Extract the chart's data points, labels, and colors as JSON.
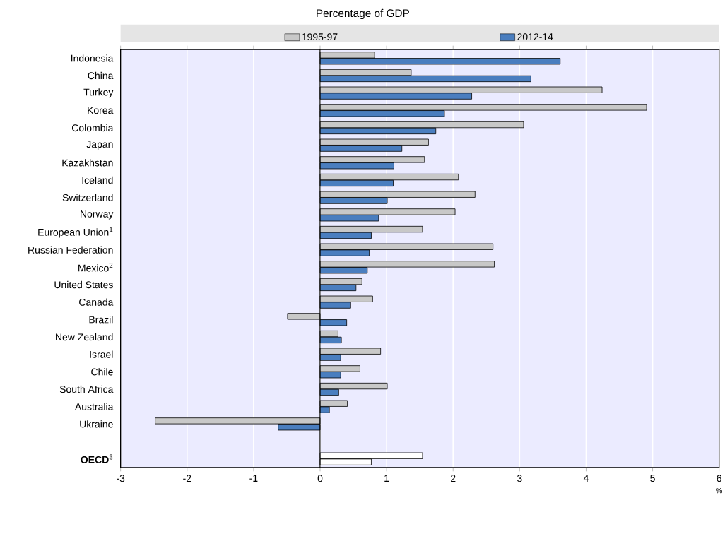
{
  "chart_data": {
    "type": "bar",
    "orientation": "horizontal",
    "subtitle": "Percentage of GDP",
    "xlabel": "%",
    "categories": [
      "Indonesia",
      "China",
      "Turkey",
      "Korea",
      "Colombia",
      "Japan",
      "Kazakhstan",
      "Iceland",
      "Switzerland",
      "Norway",
      "European Union$^{1}$",
      "Russian Federation",
      "Mexico$^{2}$",
      "United States",
      "Canada",
      "Brazil",
      "New Zealand",
      "Israel",
      "Chile",
      "South Africa",
      "Australia",
      "Ukraine",
      null,
      "**OECD**$^{3}$"
    ],
    "series": [
      {
        "name": "1995-97",
        "color": "#c8c8c8",
        "colors": [
          "#c8c8c8",
          "#c8c8c8",
          "#c8c8c8",
          "#c8c8c8",
          "#c8c8c8",
          "#c8c8c8",
          "#c8c8c8",
          "#c8c8c8",
          "#c8c8c8",
          "#c8c8c8",
          "#c8c8c8",
          "#c8c8c8",
          "#c8c8c8",
          "#c8c8c8",
          "#c8c8c8",
          "#c8c8c8",
          "#c8c8c8",
          "#c8c8c8",
          "#c8c8c8",
          "#c8c8c8",
          "#c8c8c8",
          "#c8c8c8",
          "#c8c8c8",
          "#ffffff"
        ],
        "values": [
          0.82,
          1.37,
          4.24,
          4.91,
          3.06,
          1.63,
          1.57,
          2.08,
          2.33,
          2.03,
          1.54,
          2.6,
          2.62,
          0.63,
          0.79,
          -0.49,
          0.27,
          0.91,
          0.6,
          1.01,
          0.41,
          -2.48,
          null,
          1.54
        ]
      },
      {
        "name": "2012-14",
        "color": "#4a7ebf",
        "colors": [
          "#4a7ebf",
          "#4a7ebf",
          "#4a7ebf",
          "#4a7ebf",
          "#4a7ebf",
          "#4a7ebf",
          "#4a7ebf",
          "#4a7ebf",
          "#4a7ebf",
          "#4a7ebf",
          "#4a7ebf",
          "#4a7ebf",
          "#4a7ebf",
          "#4a7ebf",
          "#4a7ebf",
          "#4a7ebf",
          "#4a7ebf",
          "#4a7ebf",
          "#4a7ebf",
          "#4a7ebf",
          "#4a7ebf",
          "#4a7ebf",
          "#4a7ebf",
          "#ffffff"
        ],
        "values": [
          3.61,
          3.17,
          2.28,
          1.87,
          1.74,
          1.23,
          1.11,
          1.1,
          1.01,
          0.88,
          0.77,
          0.74,
          0.71,
          0.54,
          0.46,
          0.4,
          0.32,
          0.31,
          0.31,
          0.28,
          0.14,
          -0.63,
          null,
          0.77
        ]
      }
    ],
    "xlim": [
      -3,
      6
    ],
    "xticks": [
      -3,
      -2,
      -1,
      0,
      1,
      2,
      3,
      4,
      5,
      6
    ],
    "grid": "x",
    "legend": "top"
  }
}
